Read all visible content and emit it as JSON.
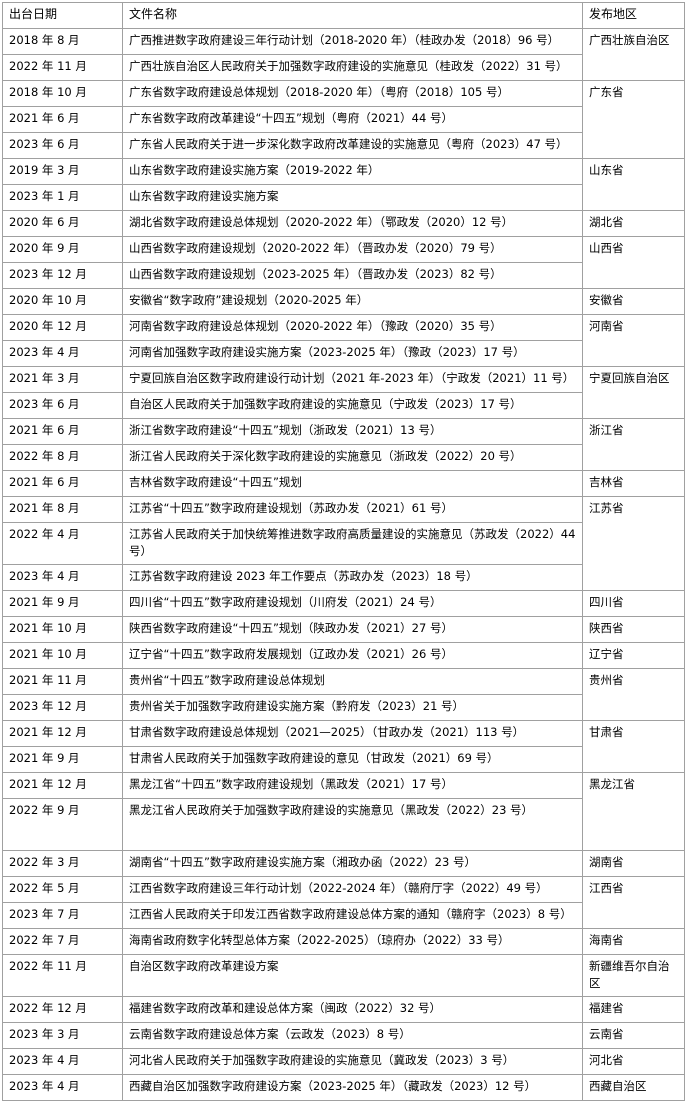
{
  "table": {
    "header": [
      "出台日期",
      "文件名称",
      "发布地区"
    ],
    "groups": [
      {
        "region": "广西壮族自治区",
        "rows": [
          {
            "date": "2018 年 8 月",
            "title": "广西推进数字政府建设三年行动计划（2018-2020 年）（桂政办发（2018）96 号）"
          },
          {
            "date": "2022 年 11 月",
            "title": "广西壮族自治区人民政府关于加强数字政府建设的实施意见（桂政发（2022）31 号）"
          }
        ]
      },
      {
        "region": "广东省",
        "rows": [
          {
            "date": "2018 年 10 月",
            "title": "广东省数字政府建设总体规划（2018-2020 年）（粤府（2018）105 号）"
          },
          {
            "date": "2021 年 6 月",
            "title": "广东省数字政府改革建设“十四五”规划（粤府（2021）44 号）"
          },
          {
            "date": "2023 年 6 月",
            "title": "广东省人民政府关于进一步深化数字政府改革建设的实施意见（粤府（2023）47 号）"
          }
        ]
      },
      {
        "region": "山东省",
        "rows": [
          {
            "date": "2019 年 3 月",
            "title": "山东省数字政府建设实施方案（2019-2022 年）"
          },
          {
            "date": "2023 年 1 月",
            "title": "山东省数字政府建设实施方案"
          }
        ]
      },
      {
        "region": "湖北省",
        "rows": [
          {
            "date": "2020 年 6 月",
            "title": "湖北省数字政府建设总体规划（2020-2022 年）（鄂政发（2020）12 号）"
          }
        ]
      },
      {
        "region": "山西省",
        "rows": [
          {
            "date": "2020 年 9 月",
            "title": "山西省数字政府建设规划（2020-2022 年）（晋政办发（2020）79 号）"
          },
          {
            "date": "2023 年 12 月",
            "title": "山西省数字政府建设规划（2023-2025 年）（晋政办发（2023）82 号）"
          }
        ]
      },
      {
        "region": "安徽省",
        "rows": [
          {
            "date": "2020 年 10 月",
            "title": "安徽省“数字政府”建设规划（2020-2025 年）"
          }
        ]
      },
      {
        "region": "河南省",
        "rows": [
          {
            "date": "2020 年 12 月",
            "title": "河南省数字政府建设总体规划（2020-2022 年）（豫政（2020）35 号）"
          },
          {
            "date": "2023 年 4 月",
            "title": "河南省加强数字政府建设实施方案（2023-2025 年）（豫政（2023）17 号）"
          }
        ]
      },
      {
        "region": "宁夏回族自治区",
        "rows": [
          {
            "date": "2021 年 3 月",
            "title": "宁夏回族自治区数字政府建设行动计划（2021 年-2023 年）（宁政发（2021）11 号）"
          },
          {
            "date": "2023 年 6 月",
            "title": "自治区人民政府关于加强数字政府建设的实施意见（宁政发（2023）17 号）"
          }
        ]
      },
      {
        "region": "浙江省",
        "rows": [
          {
            "date": "2021 年 6 月",
            "title": "浙江省数字政府建设“十四五”规划（浙政发（2021）13 号）"
          },
          {
            "date": "2022 年 8 月",
            "title": "浙江省人民政府关于深化数字政府建设的实施意见（浙政发（2022）20 号）"
          }
        ]
      },
      {
        "region": "吉林省",
        "rows": [
          {
            "date": "2021 年 6 月",
            "title": "吉林省数字政府建设“十四五”规划"
          }
        ]
      },
      {
        "region": "江苏省",
        "rows": [
          {
            "date": "2021 年 8 月",
            "title": "江苏省“十四五”数字政府建设规划（苏政办发（2021）61 号）"
          },
          {
            "date": "2022 年 4 月",
            "title": "江苏省人民政府关于加快统筹推进数字政府高质量建设的实施意见（苏政发（2022）44 号）"
          },
          {
            "date": "2023 年 4 月",
            "title": "江苏省数字政府建设 2023 年工作要点（苏政办发（2023）18 号）"
          }
        ]
      },
      {
        "region": "四川省",
        "rows": [
          {
            "date": "2021 年 9 月",
            "title": "四川省“十四五”数字政府建设规划（川府发（2021）24 号）"
          }
        ]
      },
      {
        "region": "陕西省",
        "rows": [
          {
            "date": "2021 年 10 月",
            "title": "陕西省数字政府建设“十四五”规划（陕政办发（2021）27 号）"
          }
        ]
      },
      {
        "region": "辽宁省",
        "rows": [
          {
            "date": "2021 年 10 月",
            "title": "辽宁省“十四五”数字政府发展规划（辽政办发（2021）26 号）"
          }
        ]
      },
      {
        "region": "贵州省",
        "rows": [
          {
            "date": "2021 年 11 月",
            "title": "贵州省“十四五”数字政府建设总体规划"
          },
          {
            "date": "2023 年 12 月",
            "title": "贵州省关于加强数字政府建设实施方案（黔府发（2023）21 号）"
          }
        ]
      },
      {
        "region": "甘肃省",
        "rows": [
          {
            "date": "2021 年 12 月",
            "title": "甘肃省数字政府建设总体规划（2021—2025）（甘政办发（2021）113 号）"
          },
          {
            "date": "2021 年 9 月",
            "title": "甘肃省人民政府关于加强数字政府建设的意见（甘政发（2021）69 号）"
          }
        ]
      },
      {
        "region": "黑龙江省",
        "rows": [
          {
            "date": "2021 年 12 月",
            "title": "黑龙江省“十四五”数字政府建设规划（黑政发（2021）17 号）"
          },
          {
            "date": "2022 年 9 月",
            "title": "黑龙江省人民政府关于加强数字政府建设的实施意见（黑政发（2022）23 号）"
          }
        ]
      },
      {
        "region": "湖南省",
        "rows": [
          {
            "date": "2022 年 3 月",
            "title": "湖南省“十四五”数字政府建设实施方案（湘政办函（2022）23 号）"
          }
        ]
      },
      {
        "region": "江西省",
        "rows": [
          {
            "date": "2022 年 5 月",
            "title": "江西省数字政府建设三年行动计划（2022-2024 年）（赣府厅字（2022）49 号）"
          },
          {
            "date": "2023 年 7 月",
            "title": "江西省人民政府关于印发江西省数字政府建设总体方案的通知（赣府字（2023）8 号）"
          }
        ]
      },
      {
        "region": "海南省",
        "rows": [
          {
            "date": "2022 年 7 月",
            "title": "海南省政府数字化转型总体方案（2022-2025）（琼府办（2022）33 号）"
          }
        ]
      },
      {
        "region": "新疆维吾尔自治区",
        "rows": [
          {
            "date": "2022 年 11 月",
            "title": "自治区数字政府改革建设方案"
          }
        ]
      },
      {
        "region": "福建省",
        "rows": [
          {
            "date": "2022 年 12 月",
            "title": "福建省数字政府改革和建设总体方案（闽政（2022）32 号）"
          }
        ]
      },
      {
        "region": "云南省",
        "rows": [
          {
            "date": "2023 年 3 月",
            "title": "云南省数字政府建设总体方案（云政发（2023）8 号）"
          }
        ]
      },
      {
        "region": "河北省",
        "rows": [
          {
            "date": "2023 年 4 月",
            "title": "河北省人民政府关于加强数字政府建设的实施意见（冀政发（2023）3 号）"
          }
        ]
      },
      {
        "region": "西藏自治区",
        "rows": [
          {
            "date": "2023 年 4 月",
            "title": "西藏自治区加强数字政府建设方案（2023-2025 年）（藏政发（2023）12 号）"
          }
        ]
      }
    ]
  }
}
